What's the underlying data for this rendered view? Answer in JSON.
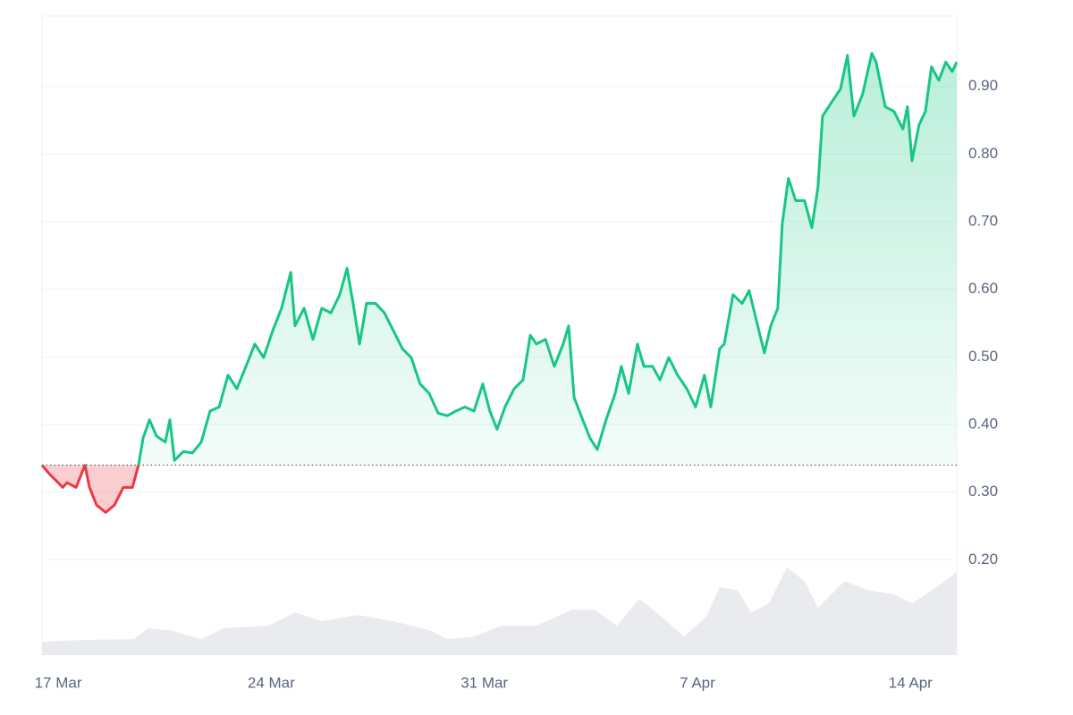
{
  "chart_data": {
    "type": "baseline-area",
    "xlim": [
      -0.53,
      29.52
    ],
    "ylim": [
      0.059,
      1.004
    ],
    "xticks": [
      {
        "value": 0,
        "label": "17 Mar"
      },
      {
        "value": 7,
        "label": "24 Mar"
      },
      {
        "value": 14,
        "label": "31 Mar"
      },
      {
        "value": 21,
        "label": "7 Apr"
      },
      {
        "value": 28,
        "label": "14 Apr"
      }
    ],
    "yticks": [
      {
        "value": 0.2,
        "label": "0.20"
      },
      {
        "value": 0.3,
        "label": "0.30"
      },
      {
        "value": 0.4,
        "label": "0.40"
      },
      {
        "value": 0.5,
        "label": "0.50"
      },
      {
        "value": 0.6,
        "label": "0.60"
      },
      {
        "value": 0.7,
        "label": "0.70"
      },
      {
        "value": 0.8,
        "label": "0.80"
      },
      {
        "value": 0.9,
        "label": "0.90"
      }
    ],
    "grid": true,
    "baseline": 0.34,
    "up_color": "#16c784",
    "down_color": "#ea3943",
    "x": [
      -0.53,
      -0.29,
      0,
      0.15,
      0.29,
      0.59,
      0.88,
      1.03,
      1.26,
      1.56,
      1.85,
      2.14,
      2.44,
      2.64,
      2.79,
      3.0,
      3.23,
      3.52,
      3.67,
      3.82,
      4.11,
      4.41,
      4.7,
      4.99,
      5.29,
      5.58,
      5.87,
      6.17,
      6.46,
      6.75,
      7.05,
      7.34,
      7.64,
      7.78,
      8.08,
      8.37,
      8.66,
      8.96,
      9.25,
      9.49,
      9.69,
      9.9,
      10.13,
      10.43,
      10.72,
      11.01,
      11.31,
      11.6,
      11.89,
      12.19,
      12.48,
      12.78,
      13.07,
      13.36,
      13.66,
      13.95,
      14.18,
      14.42,
      14.68,
      14.98,
      15.27,
      15.51,
      15.71,
      16.01,
      16.3,
      16.59,
      16.77,
      16.95,
      17.18,
      17.47,
      17.71,
      18.0,
      18.3,
      18.5,
      18.74,
      19.03,
      19.24,
      19.53,
      19.77,
      20.06,
      20.35,
      20.65,
      20.94,
      21.23,
      21.44,
      21.73,
      21.88,
      22.17,
      22.47,
      22.7,
      22.91,
      23.2,
      23.41,
      23.64,
      23.79,
      23.99,
      24.23,
      24.52,
      24.76,
      24.96,
      25.11,
      25.4,
      25.7,
      25.93,
      26.14,
      26.43,
      26.73,
      26.87,
      27.17,
      27.46,
      27.75,
      27.9,
      28.05,
      28.28,
      28.49,
      28.69,
      28.93,
      29.16,
      29.37,
      29.52
    ],
    "values": [
      0.34,
      0.327,
      0.314,
      0.307,
      0.314,
      0.307,
      0.34,
      0.307,
      0.281,
      0.27,
      0.281,
      0.307,
      0.307,
      0.34,
      0.38,
      0.407,
      0.383,
      0.374,
      0.407,
      0.347,
      0.36,
      0.358,
      0.374,
      0.42,
      0.426,
      0.473,
      0.453,
      0.486,
      0.519,
      0.499,
      0.539,
      0.572,
      0.625,
      0.546,
      0.572,
      0.526,
      0.572,
      0.565,
      0.592,
      0.631,
      0.579,
      0.519,
      0.579,
      0.579,
      0.565,
      0.539,
      0.512,
      0.499,
      0.46,
      0.446,
      0.417,
      0.413,
      0.42,
      0.426,
      0.42,
      0.46,
      0.42,
      0.393,
      0.426,
      0.453,
      0.466,
      0.532,
      0.519,
      0.526,
      0.486,
      0.519,
      0.546,
      0.44,
      0.413,
      0.38,
      0.363,
      0.407,
      0.446,
      0.486,
      0.446,
      0.519,
      0.486,
      0.486,
      0.466,
      0.499,
      0.473,
      0.453,
      0.426,
      0.473,
      0.426,
      0.512,
      0.519,
      0.592,
      0.579,
      0.598,
      0.559,
      0.506,
      0.546,
      0.572,
      0.698,
      0.764,
      0.731,
      0.731,
      0.691,
      0.751,
      0.856,
      0.876,
      0.896,
      0.946,
      0.856,
      0.889,
      0.949,
      0.936,
      0.87,
      0.863,
      0.837,
      0.87,
      0.79,
      0.843,
      0.863,
      0.929,
      0.909,
      0.936,
      0.922,
      0.936
    ],
    "y2lim": [
      0,
      1
    ],
    "volume": {
      "color": "#e9ebef",
      "axis": "y2",
      "x": [
        -0.53,
        1.03,
        2.5,
        2.94,
        3.67,
        4.7,
        5.43,
        6.9,
        7.78,
        8.66,
        9.84,
        11.01,
        12.19,
        12.78,
        13.66,
        14.54,
        15.71,
        16.89,
        17.62,
        18.36,
        19.09,
        19.82,
        20.56,
        21.29,
        21.73,
        22.32,
        22.76,
        23.35,
        23.94,
        24.52,
        24.96,
        25.84,
        26.58,
        27.46,
        28.05,
        28.93,
        29.52
      ],
      "values": [
        0.021,
        0.024,
        0.025,
        0.042,
        0.039,
        0.025,
        0.042,
        0.046,
        0.067,
        0.053,
        0.063,
        0.053,
        0.039,
        0.025,
        0.029,
        0.046,
        0.046,
        0.071,
        0.071,
        0.046,
        0.088,
        0.06,
        0.029,
        0.06,
        0.106,
        0.102,
        0.067,
        0.081,
        0.137,
        0.116,
        0.074,
        0.116,
        0.102,
        0.095,
        0.081,
        0.109,
        0.13
      ]
    }
  }
}
